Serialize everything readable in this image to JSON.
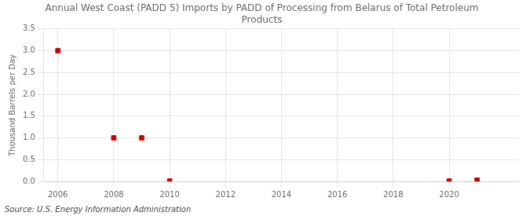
{
  "chart_data": {
    "type": "scatter",
    "title": "Annual West Coast (PADD 5) Imports by PADD of Processing from Belarus of Total Petroleum\nProducts",
    "ylabel": "Thousand Barrels per Day",
    "annotations": [
      "Source: U.S. Energy Information Administration"
    ],
    "x": [
      2006,
      2008,
      2009,
      2010,
      2020,
      2021
    ],
    "values": [
      3.0,
      1.0,
      1.0,
      0.01,
      0.01,
      0.03
    ],
    "color": "#cc0000",
    "marker": "square",
    "xlim": [
      2005.5,
      2022.5
    ],
    "ylim": [
      0.0,
      3.5
    ],
    "xticks": [
      2006,
      2008,
      2010,
      2012,
      2014,
      2016,
      2018,
      2020
    ],
    "yticks": [
      {
        "value": 0,
        "label": "0.0"
      },
      0.5,
      {
        "value": 1,
        "label": "1.0"
      },
      1.5,
      {
        "value": 2,
        "label": "2.0"
      },
      2.5,
      {
        "value": 3,
        "label": "3.0"
      },
      3.5
    ],
    "grid": true
  }
}
